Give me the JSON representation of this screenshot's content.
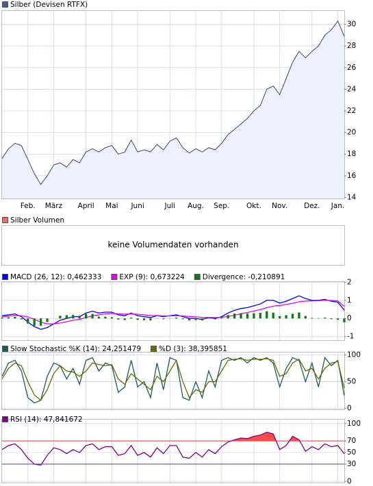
{
  "chart_data": [
    {
      "type": "area",
      "title": "Silber (Devisen RTFX)",
      "color": "#3a4670",
      "fill": "#eef0fb",
      "swatch": "#4a5a8a",
      "categories": [
        null,
        null,
        null,
        null,
        "Feb.",
        null,
        null,
        null,
        "März",
        null,
        null,
        null,
        null,
        "April",
        null,
        null,
        null,
        "Mai",
        null,
        null,
        null,
        "Juni",
        null,
        null,
        null,
        null,
        "Juli",
        null,
        null,
        null,
        "Aug.",
        null,
        null,
        null,
        "Sep.",
        null,
        null,
        null,
        null,
        "Okt.",
        null,
        null,
        null,
        "Nov.",
        null,
        null,
        null,
        null,
        "Dez.",
        null,
        null,
        null,
        "Jan.",
        null
      ],
      "values": [
        17.6,
        18.5,
        19.0,
        18.8,
        17.5,
        16.2,
        15.2,
        16.0,
        17.0,
        17.2,
        16.8,
        17.5,
        17.2,
        18.2,
        18.5,
        18.2,
        18.6,
        18.8,
        18.0,
        18.2,
        19.3,
        18.2,
        18.4,
        18.2,
        18.9,
        18.4,
        19.2,
        19.5,
        18.6,
        18.1,
        18.5,
        18.2,
        18.6,
        18.4,
        19.0,
        19.8,
        20.3,
        20.8,
        21.3,
        22.0,
        22.5,
        24.0,
        24.3,
        23.5,
        25.0,
        26.5,
        27.5,
        26.9,
        27.5,
        28.0,
        29.0,
        29.5,
        30.3,
        28.9
      ],
      "ylim": [
        13.9,
        31.3
      ],
      "yticks": [
        14,
        16,
        18,
        20,
        22,
        24,
        26,
        28,
        30
      ],
      "grid": true
    },
    {
      "type": "line",
      "ylim": [
        -1.2,
        2.05
      ],
      "yticks": [
        -1,
        0,
        1,
        2
      ],
      "grid": true,
      "series": [
        {
          "name": "MACD (26, 12): 0,462333",
          "color": "#0000ee",
          "values": [
            0.15,
            0.2,
            0.25,
            0.1,
            -0.2,
            -0.45,
            -0.6,
            -0.5,
            -0.3,
            -0.1,
            0.0,
            0.1,
            0.1,
            0.3,
            0.4,
            0.3,
            0.35,
            0.35,
            0.2,
            0.15,
            0.3,
            0.15,
            0.1,
            0.05,
            0.15,
            0.1,
            0.15,
            0.2,
            0.1,
            0.0,
            0.0,
            -0.05,
            0.05,
            0.0,
            0.1,
            0.3,
            0.45,
            0.55,
            0.6,
            0.7,
            0.8,
            1.0,
            1.0,
            0.85,
            0.95,
            1.1,
            1.25,
            1.1,
            1.0,
            1.0,
            1.05,
            0.95,
            0.9,
            0.46
          ]
        },
        {
          "name": "EXP (9): 0,673224",
          "color": "#ee00ee",
          "values": [
            0.1,
            0.13,
            0.16,
            0.15,
            0.08,
            -0.05,
            -0.2,
            -0.3,
            -0.3,
            -0.25,
            -0.18,
            -0.1,
            -0.05,
            0.05,
            0.15,
            0.2,
            0.25,
            0.28,
            0.26,
            0.24,
            0.25,
            0.23,
            0.2,
            0.16,
            0.16,
            0.14,
            0.14,
            0.15,
            0.14,
            0.11,
            0.09,
            0.06,
            0.06,
            0.05,
            0.06,
            0.11,
            0.18,
            0.26,
            0.33,
            0.41,
            0.49,
            0.6,
            0.68,
            0.72,
            0.77,
            0.84,
            0.92,
            0.96,
            0.97,
            0.98,
            1.0,
            0.99,
            0.97,
            0.67
          ]
        },
        {
          "name": "Divergence: -0,210891",
          "color": "#117711",
          "style": "bar",
          "values": [
            0.05,
            0.07,
            0.09,
            -0.05,
            -0.28,
            -0.4,
            -0.4,
            -0.2,
            0,
            0.15,
            0.18,
            0.2,
            0.15,
            0.25,
            0.25,
            0.1,
            0.1,
            0.07,
            -0.06,
            -0.09,
            0.05,
            -0.08,
            -0.1,
            -0.11,
            -0.01,
            -0.04,
            0.01,
            0.05,
            -0.04,
            -0.11,
            -0.09,
            -0.11,
            -0.01,
            -0.05,
            0.04,
            0.19,
            0.27,
            0.29,
            0.27,
            0.29,
            0.31,
            0.4,
            0.32,
            0.13,
            0.18,
            0.26,
            0.33,
            0.14,
            0.03,
            0.02,
            0.05,
            -0.04,
            -0.07,
            -0.21
          ]
        }
      ]
    },
    {
      "type": "line",
      "ylim": [
        -2,
        106
      ],
      "yticks": [
        0,
        50,
        100
      ],
      "grid": true,
      "series": [
        {
          "name": "Slow Stochastic %K (14): 24,251479",
          "color": "#1a5a5a",
          "values": [
            60,
            85,
            90,
            70,
            20,
            10,
            15,
            60,
            85,
            80,
            55,
            75,
            45,
            90,
            95,
            70,
            85,
            80,
            30,
            40,
            90,
            40,
            50,
            20,
            85,
            35,
            95,
            90,
            20,
            15,
            50,
            20,
            70,
            40,
            90,
            95,
            90,
            95,
            85,
            95,
            90,
            95,
            85,
            40,
            75,
            95,
            90,
            50,
            85,
            40,
            95,
            80,
            90,
            24
          ]
        },
        {
          "name": "%D (3): 38,395851",
          "color": "#6b6b00",
          "values": [
            55,
            75,
            85,
            80,
            50,
            25,
            15,
            35,
            65,
            80,
            70,
            68,
            60,
            70,
            85,
            82,
            80,
            82,
            55,
            45,
            65,
            55,
            45,
            35,
            60,
            50,
            70,
            90,
            50,
            20,
            35,
            30,
            50,
            50,
            70,
            90,
            92,
            93,
            90,
            92,
            92,
            93,
            90,
            60,
            65,
            85,
            92,
            70,
            75,
            55,
            75,
            85,
            88,
            38
          ]
        }
      ]
    },
    {
      "type": "line",
      "ylim": [
        -2,
        108
      ],
      "yticks": [
        0,
        30,
        50,
        70,
        100
      ],
      "grid": true,
      "reference_lines": [
        {
          "value": 70,
          "color": "#e04040",
          "fill": "#ff4a4a"
        },
        {
          "value": 30,
          "color": "#4040c0"
        }
      ],
      "series": [
        {
          "name": "RSI (14): 47,841672",
          "color": "#800080",
          "values": [
            55,
            62,
            65,
            55,
            40,
            30,
            28,
            45,
            58,
            55,
            48,
            55,
            50,
            62,
            65,
            55,
            60,
            60,
            45,
            48,
            62,
            45,
            50,
            42,
            58,
            48,
            62,
            62,
            42,
            40,
            50,
            42,
            55,
            48,
            60,
            68,
            72,
            75,
            74,
            78,
            80,
            85,
            82,
            55,
            62,
            78,
            72,
            52,
            60,
            55,
            65,
            60,
            62,
            47.84
          ]
        }
      ]
    }
  ],
  "volume_panel": {
    "title": "Silber Volumen",
    "message": "keine Volumendaten vorhanden",
    "swatch": "#e07070"
  }
}
